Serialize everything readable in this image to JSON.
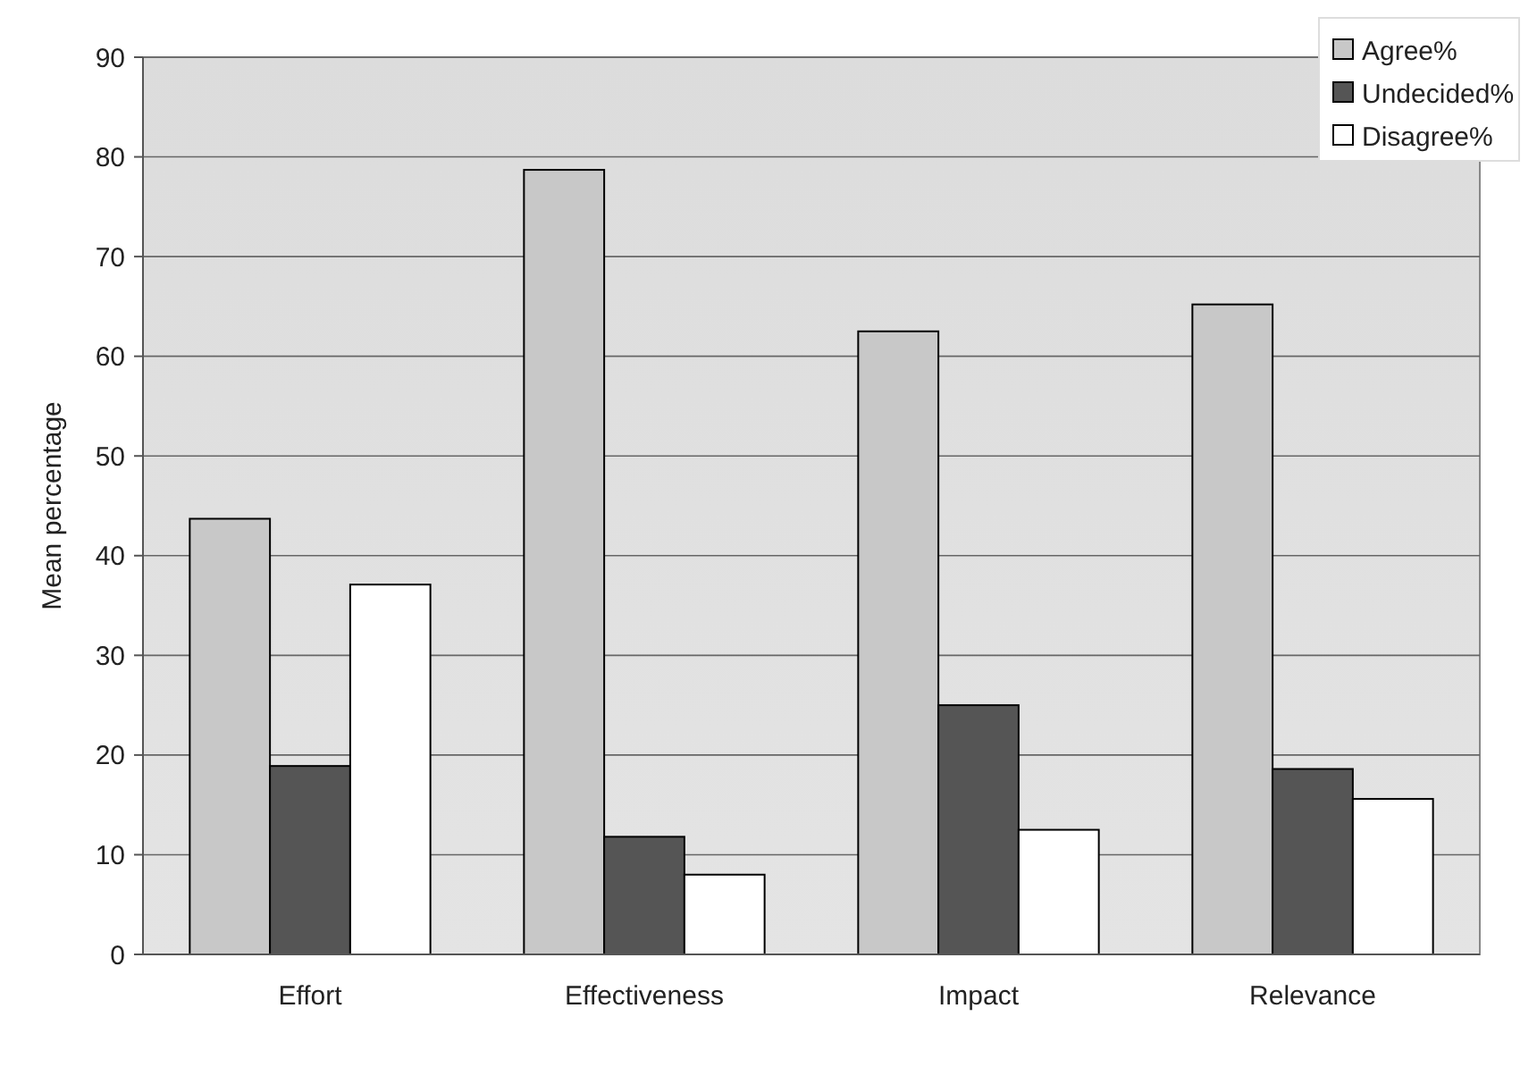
{
  "chart_data": {
    "type": "bar",
    "ylabel": "Mean percentage",
    "categories": [
      "Effort",
      "Effectiveness",
      "Impact",
      "Relevance"
    ],
    "series": [
      {
        "name": "Agree%",
        "color": "#c8c8c8",
        "values": [
          43.7,
          78.7,
          62.5,
          65.2
        ]
      },
      {
        "name": "Undecided%",
        "color": "#555555",
        "values": [
          18.9,
          11.8,
          25,
          18.6
        ]
      },
      {
        "name": "Disagree%",
        "color": "#ffffff",
        "values": [
          37.1,
          8,
          12.5,
          15.6
        ]
      }
    ],
    "ylim": [
      0,
      90
    ],
    "yticks": [
      0,
      10,
      20,
      30,
      40,
      50,
      60,
      70,
      80,
      90
    ],
    "grid": "y",
    "legend": "top right"
  }
}
